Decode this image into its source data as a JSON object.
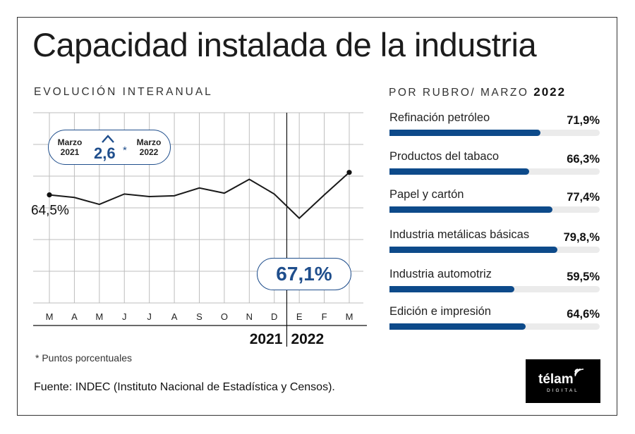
{
  "title": "Capacidad instalada de la industria",
  "subtitle": "EVOLUCIÓN INTERANUAL",
  "rubros": {
    "heading_prefix": "POR RUBRO/ MARZO",
    "heading_year": "2022",
    "items": [
      {
        "label": "Refinación petróleo",
        "pct_label": "71,9%",
        "value": 71.9
      },
      {
        "label": "Productos del tabaco",
        "pct_label": "66,3%",
        "value": 66.3
      },
      {
        "label": "Papel y cartón",
        "pct_label": "77,4%",
        "value": 77.4
      },
      {
        "label": "Industria metálicas básicas",
        "pct_label": "79,8,%",
        "value": 79.8
      },
      {
        "label": "Industria automotriz",
        "pct_label": "59,5%",
        "value": 59.5
      },
      {
        "label": "Edición e impresión",
        "pct_label": "64,6%",
        "value": 64.6
      }
    ]
  },
  "badge_top": {
    "left_label": "Marzo\n2021",
    "right_label": "Marzo\n2022",
    "value": "2,6",
    "star": "*"
  },
  "start_label": "64,5%",
  "end_label": "67,1%",
  "years": {
    "left": "2021",
    "right": "2022"
  },
  "footnote": "* Puntos porcentuales",
  "source": "Fuente: INDEC (Instituto Nacional de Estadística y Censos).",
  "logo": {
    "word": "télam",
    "sub": "DIGITAL"
  },
  "colors": {
    "accent": "#0d4a8a",
    "line": "#1a1a1a",
    "grid": "#bdbdbd"
  },
  "chart_data": [
    {
      "type": "line",
      "categories": [
        "M",
        "A",
        "M",
        "J",
        "J",
        "A",
        "S",
        "O",
        "N",
        "D",
        "E",
        "F",
        "M"
      ],
      "series": [
        {
          "values": [
            64.5,
            64.2,
            63.4,
            64.6,
            64.3,
            64.4,
            65.3,
            64.7,
            66.3,
            64.6,
            61.8,
            64.5,
            67.1
          ]
        }
      ],
      "ylim": [
        52,
        74
      ],
      "grid": true,
      "title": "",
      "xlabel": "",
      "ylabel": ""
    },
    {
      "type": "bar",
      "orientation": "horizontal",
      "categories": [
        "Refinación petróleo",
        "Productos del tabaco",
        "Papel y cartón",
        "Industria metálicas básicas",
        "Industria automotriz",
        "Edición e impresión"
      ],
      "values": [
        71.9,
        66.3,
        77.4,
        79.8,
        59.5,
        64.6
      ],
      "xlim": [
        0,
        100
      ]
    }
  ]
}
